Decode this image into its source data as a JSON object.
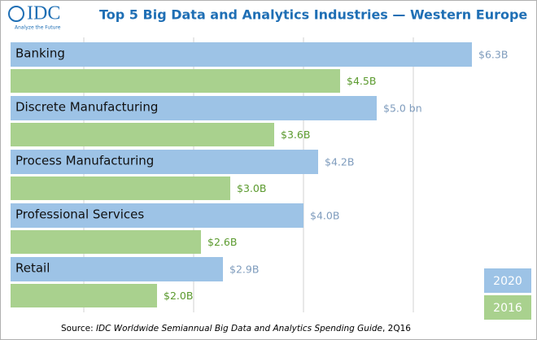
{
  "chart_data": {
    "type": "bar",
    "orientation": "horizontal",
    "logo": {
      "name": "IDC",
      "tagline": "Analyze the Future"
    },
    "title": "Top 5 Big Data and Analytics Industries — Western Europe",
    "categories": [
      "Banking",
      "Discrete Manufacturing",
      "Process Manufacturing",
      "Professional Services",
      "Retail"
    ],
    "series": [
      {
        "name": "2020",
        "color": "#9dc3e6",
        "label_color": "#7f9cbd",
        "values": [
          6.3,
          5.0,
          4.2,
          4.0,
          2.9
        ],
        "value_labels": [
          "$6.3B",
          "$5.0 bn",
          "$4.2B",
          "$4.0B",
          "$2.9B"
        ]
      },
      {
        "name": "2016",
        "color": "#a9d18e",
        "label_color": "#5b9a2e",
        "values": [
          4.5,
          3.6,
          3.0,
          2.6,
          2.0
        ],
        "value_labels": [
          "$4.5B",
          "$3.6B",
          "$3.0B",
          "$2.6B",
          "$2.0B"
        ]
      }
    ],
    "xlim": [
      0,
      7.1
    ],
    "xticks": [
      1,
      2.5,
      4,
      5.5
    ],
    "grid": true,
    "legend": "bottom-right",
    "source": {
      "prefix": "Source: ",
      "title": "IDC Worldwide Semiannual Big Data and Analytics Spending Guide",
      "suffix": ", 2Q16"
    }
  }
}
